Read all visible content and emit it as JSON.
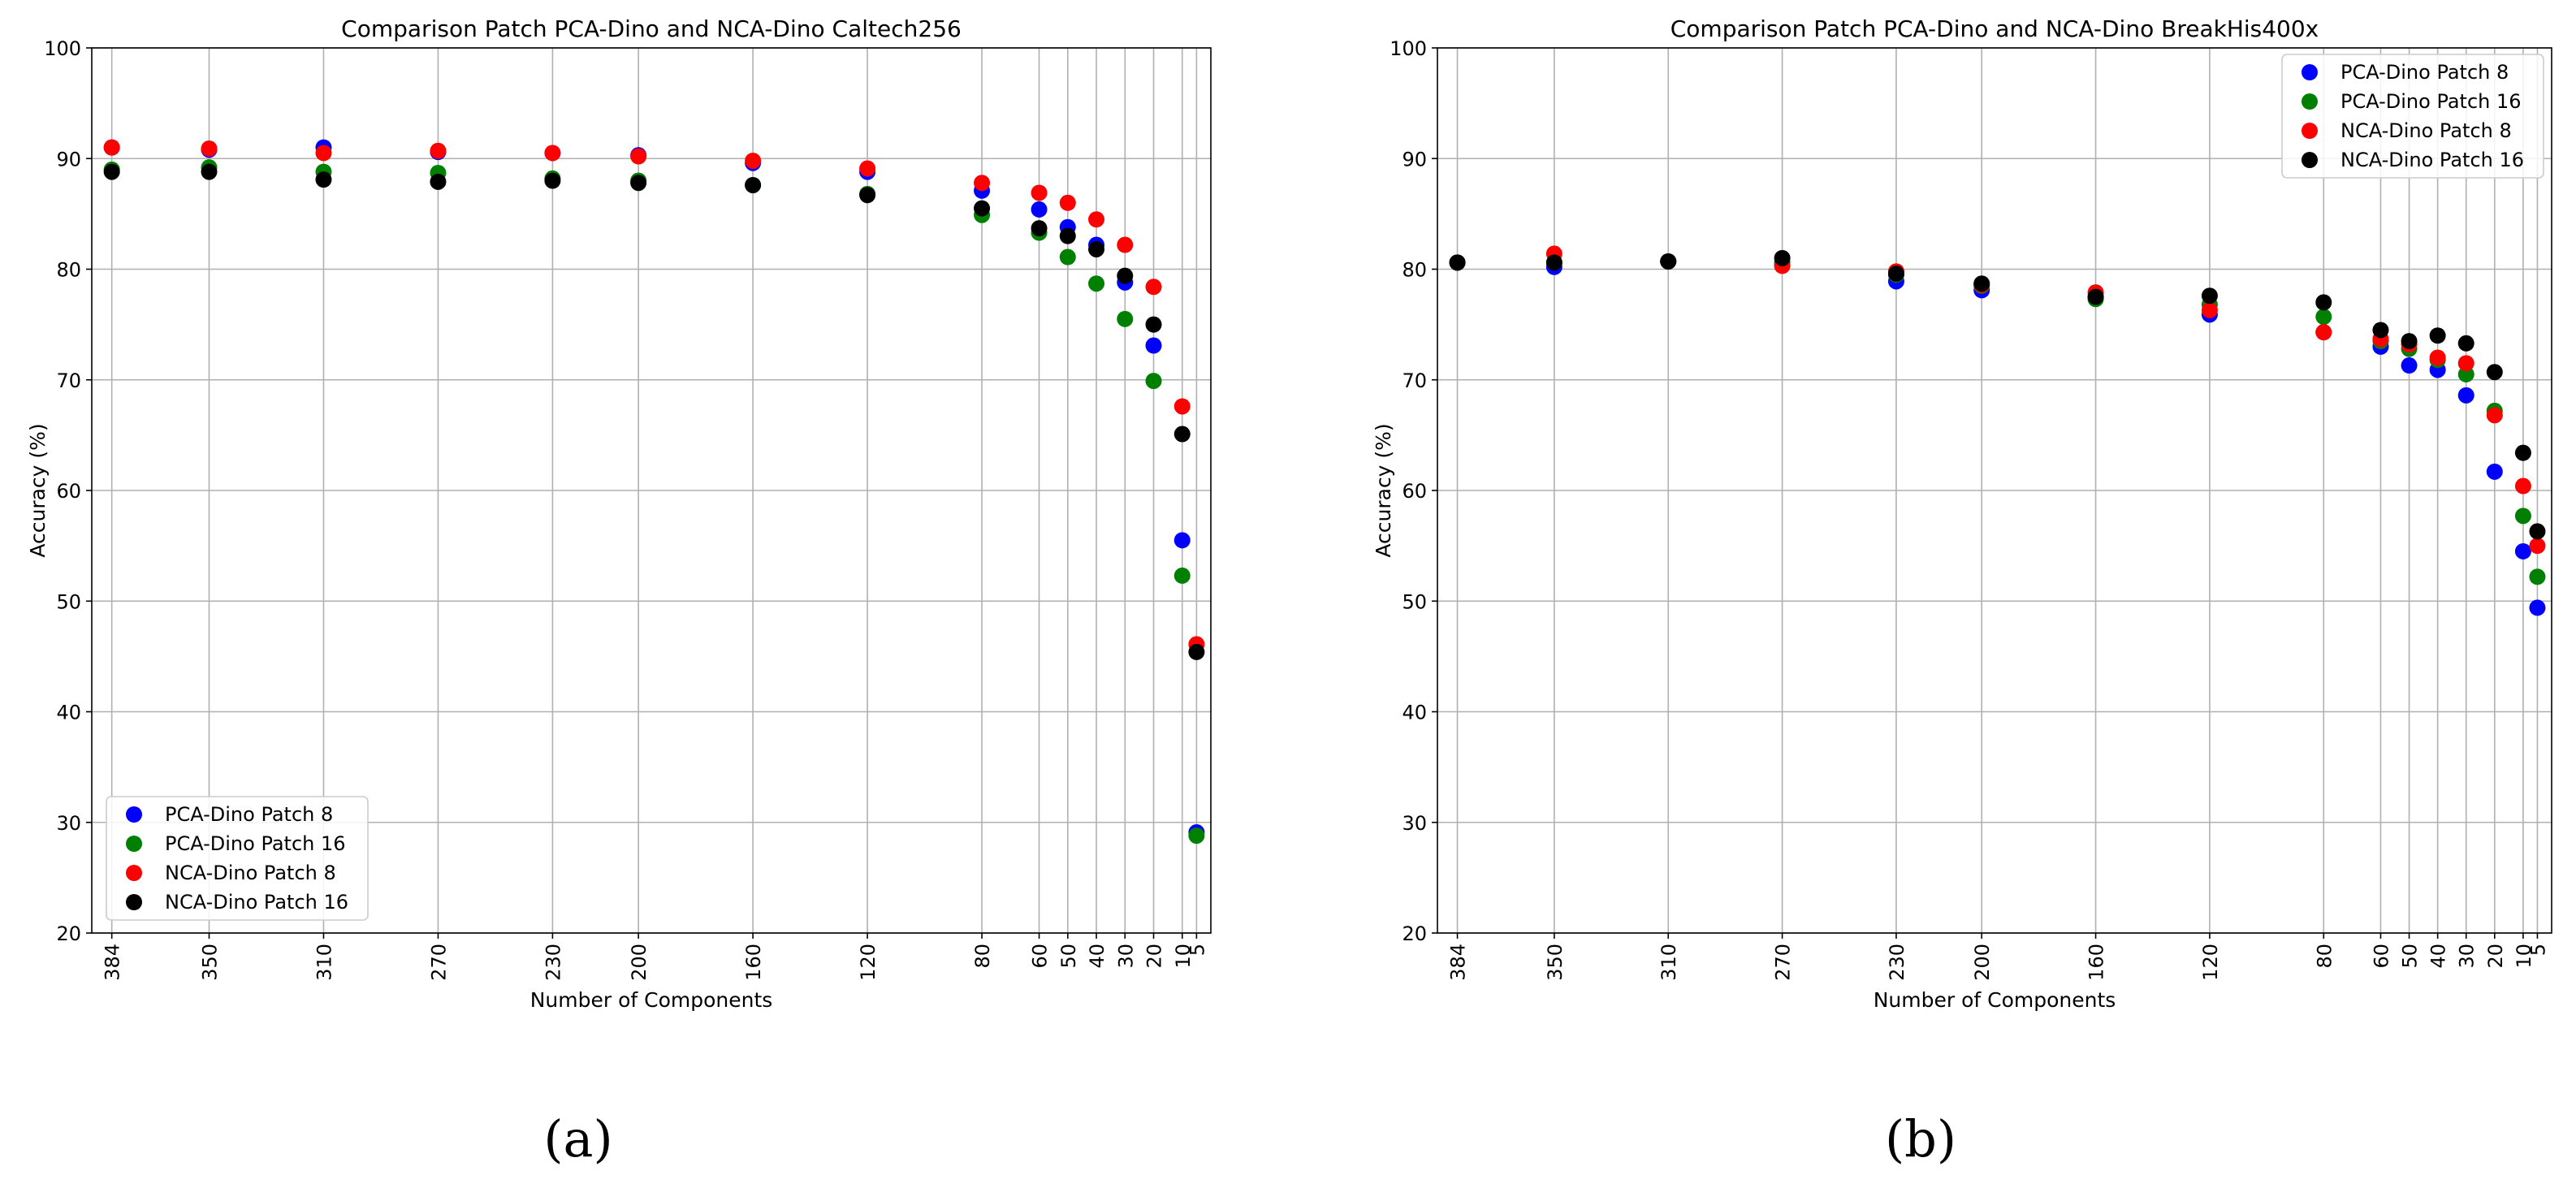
{
  "chart_data": [
    {
      "type": "scatter",
      "title": "Comparison Patch PCA-Dino and NCA-Dino Caltech256",
      "x_label": "Number of Components",
      "y_label": "Accuracy (%)",
      "caption": "(a)",
      "x": [
        384,
        350,
        310,
        270,
        230,
        200,
        160,
        120,
        80,
        60,
        50,
        40,
        30,
        20,
        10,
        5
      ],
      "xlim": [
        391,
        0
      ],
      "xticks": [
        384,
        350,
        310,
        270,
        230,
        200,
        160,
        120,
        80,
        60,
        50,
        40,
        30,
        20,
        10,
        5
      ],
      "ylim": [
        20,
        100
      ],
      "yticks": [
        20,
        30,
        40,
        50,
        60,
        70,
        80,
        90,
        100
      ],
      "grid": true,
      "legend": "lower left",
      "series": [
        {
          "name": "PCA-Dino Patch 8",
          "color": "#0000ff",
          "values": [
            91,
            90.8,
            91,
            90.6,
            90.5,
            90.3,
            89.6,
            88.8,
            87.1,
            85.4,
            83.8,
            82.2,
            78.8,
            73.1,
            55.5,
            29.1
          ]
        },
        {
          "name": "PCA-Dino Patch 16",
          "color": "#008000",
          "values": [
            89,
            89.2,
            88.8,
            88.7,
            88.2,
            88,
            87.6,
            86.8,
            84.9,
            83.3,
            81.1,
            78.7,
            75.5,
            69.9,
            52.3,
            28.8
          ]
        },
        {
          "name": "NCA-Dino Patch 8",
          "color": "#ff0000",
          "values": [
            91,
            90.9,
            90.5,
            90.7,
            90.5,
            90.2,
            89.8,
            89.1,
            87.8,
            86.9,
            86,
            84.5,
            82.2,
            78.4,
            67.6,
            46.1
          ]
        },
        {
          "name": "NCA-Dino Patch 16",
          "color": "#000000",
          "values": [
            88.8,
            88.8,
            88.1,
            87.9,
            88,
            87.8,
            87.6,
            86.7,
            85.5,
            83.7,
            83,
            81.8,
            79.4,
            75,
            65.1,
            45.4
          ]
        }
      ]
    },
    {
      "type": "scatter",
      "title": "Comparison Patch PCA-Dino and NCA-Dino BreakHis400x",
      "x_label": "Number of Components",
      "y_label": "Accuracy (%)",
      "caption": "(b)",
      "x": [
        384,
        350,
        310,
        270,
        230,
        200,
        160,
        120,
        80,
        60,
        50,
        40,
        30,
        20,
        10,
        5
      ],
      "xlim": [
        391,
        0
      ],
      "xticks": [
        384,
        350,
        310,
        270,
        230,
        200,
        160,
        120,
        80,
        60,
        50,
        40,
        30,
        20,
        10,
        5
      ],
      "ylim": [
        20,
        100
      ],
      "yticks": [
        20,
        30,
        40,
        50,
        60,
        70,
        80,
        90,
        100
      ],
      "grid": true,
      "legend": "upper right",
      "series": [
        {
          "name": "PCA-Dino Patch 8",
          "color": "#0000ff",
          "values": [
            80.6,
            80.2,
            80.7,
            80.4,
            78.9,
            78.1,
            77.5,
            75.9,
            74.3,
            73,
            71.3,
            70.9,
            68.6,
            61.7,
            54.5,
            49.4
          ]
        },
        {
          "name": "PCA-Dino Patch 16",
          "color": "#008000",
          "values": [
            80.6,
            80.6,
            80.7,
            80.6,
            79.5,
            78.5,
            77.3,
            76.8,
            75.7,
            73.5,
            72.8,
            71.8,
            70.5,
            67.2,
            57.7,
            52.2
          ]
        },
        {
          "name": "NCA-Dino Patch 8",
          "color": "#ff0000",
          "values": [
            80.6,
            81.4,
            80.7,
            80.3,
            79.8,
            78.6,
            77.9,
            76.3,
            74.3,
            73.7,
            73.2,
            72,
            71.5,
            66.8,
            60.4,
            55
          ]
        },
        {
          "name": "NCA-Dino Patch 16",
          "color": "#000000",
          "values": [
            80.6,
            80.6,
            80.7,
            81,
            79.6,
            78.7,
            77.5,
            77.6,
            77,
            74.5,
            73.5,
            74,
            73.3,
            70.7,
            63.4,
            56.3
          ]
        }
      ]
    }
  ]
}
